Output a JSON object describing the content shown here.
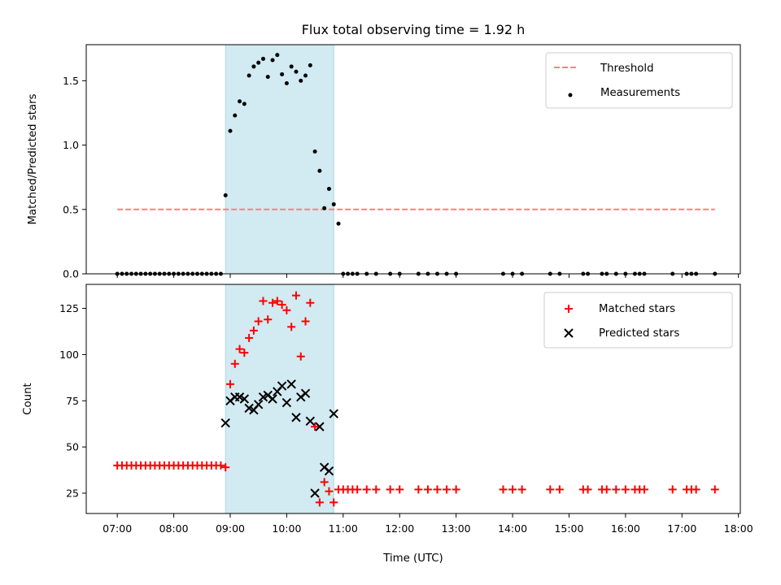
{
  "chart_data": [
    {
      "type": "scatter",
      "title": "Flux total observing time = 1.92 h",
      "xlabel": "",
      "ylabel": "Matched/Predicted stars",
      "ylim": [
        0,
        1.78
      ],
      "yticks": [
        "0.0",
        "0.5",
        "1.0",
        "1.5"
      ],
      "ytick_values": [
        0,
        0.5,
        1.0,
        1.5
      ],
      "legend_position": "top-right",
      "legend": [
        "Threshold",
        "Measurements"
      ],
      "threshold": {
        "name": "Threshold",
        "y": 0.5,
        "x_start": "07:00",
        "x_end": "17:35",
        "color": "#ff7f7f",
        "style": "dashed"
      },
      "observing_window": {
        "start": "08:55",
        "end": "10:50",
        "color": "#add8e6"
      },
      "series": [
        {
          "name": "Measurements",
          "color": "#000000",
          "points": [
            [
              "07:00",
              0
            ],
            [
              "07:05",
              0
            ],
            [
              "07:10",
              0
            ],
            [
              "07:15",
              0
            ],
            [
              "07:20",
              0
            ],
            [
              "07:25",
              0
            ],
            [
              "07:30",
              0
            ],
            [
              "07:35",
              0
            ],
            [
              "07:40",
              0
            ],
            [
              "07:45",
              0
            ],
            [
              "07:50",
              0
            ],
            [
              "07:55",
              0
            ],
            [
              "08:00",
              0
            ],
            [
              "08:05",
              0
            ],
            [
              "08:10",
              0
            ],
            [
              "08:15",
              0
            ],
            [
              "08:20",
              0
            ],
            [
              "08:25",
              0
            ],
            [
              "08:30",
              0
            ],
            [
              "08:35",
              0
            ],
            [
              "08:40",
              0
            ],
            [
              "08:45",
              0
            ],
            [
              "08:50",
              0
            ],
            [
              "08:55",
              0.61
            ],
            [
              "09:00",
              1.11
            ],
            [
              "09:05",
              1.23
            ],
            [
              "09:10",
              1.34
            ],
            [
              "09:15",
              1.32
            ],
            [
              "09:20",
              1.54
            ],
            [
              "09:25",
              1.61
            ],
            [
              "09:30",
              1.64
            ],
            [
              "09:35",
              1.67
            ],
            [
              "09:40",
              1.53
            ],
            [
              "09:45",
              1.66
            ],
            [
              "09:50",
              1.7
            ],
            [
              "09:55",
              1.55
            ],
            [
              "10:00",
              1.48
            ],
            [
              "10:05",
              1.61
            ],
            [
              "10:10",
              1.57
            ],
            [
              "10:15",
              1.5
            ],
            [
              "10:20",
              1.54
            ],
            [
              "10:25",
              1.62
            ],
            [
              "10:30",
              0.95
            ],
            [
              "10:35",
              0.8
            ],
            [
              "10:40",
              0.51
            ],
            [
              "10:45",
              0.66
            ],
            [
              "10:50",
              0.54
            ],
            [
              "10:55",
              0.39
            ],
            [
              "11:00",
              0
            ],
            [
              "11:05",
              0
            ],
            [
              "11:10",
              0
            ],
            [
              "11:15",
              0
            ],
            [
              "11:25",
              0
            ],
            [
              "11:35",
              0
            ],
            [
              "11:50",
              0
            ],
            [
              "12:00",
              0
            ],
            [
              "12:20",
              0
            ],
            [
              "12:30",
              0
            ],
            [
              "12:40",
              0
            ],
            [
              "12:50",
              0
            ],
            [
              "13:00",
              0
            ],
            [
              "13:50",
              0
            ],
            [
              "14:00",
              0
            ],
            [
              "14:10",
              0
            ],
            [
              "14:40",
              0
            ],
            [
              "14:50",
              0
            ],
            [
              "15:15",
              0
            ],
            [
              "15:20",
              0
            ],
            [
              "15:35",
              0
            ],
            [
              "15:40",
              0
            ],
            [
              "15:50",
              0
            ],
            [
              "16:00",
              0
            ],
            [
              "16:10",
              0
            ],
            [
              "16:15",
              0
            ],
            [
              "16:20",
              0
            ],
            [
              "16:50",
              0
            ],
            [
              "17:05",
              0
            ],
            [
              "17:10",
              0
            ],
            [
              "17:15",
              0
            ],
            [
              "17:35",
              0
            ]
          ]
        }
      ]
    },
    {
      "type": "scatter",
      "title": "",
      "xlabel": "Time (UTC)",
      "ylabel": "Count",
      "ylim": [
        14,
        138
      ],
      "yticks": [
        "25",
        "50",
        "75",
        "100",
        "125"
      ],
      "ytick_values": [
        25,
        50,
        75,
        100,
        125
      ],
      "xlim": [
        "06:27",
        "18:02"
      ],
      "xticks": [
        "07:00",
        "08:00",
        "09:00",
        "10:00",
        "11:00",
        "12:00",
        "13:00",
        "14:00",
        "15:00",
        "16:00",
        "17:00",
        "18:00"
      ],
      "legend_position": "top-right",
      "legend": [
        "Matched stars",
        "Predicted stars"
      ],
      "observing_window": {
        "start": "08:55",
        "end": "10:50",
        "color": "#add8e6"
      },
      "series": [
        {
          "name": "Matched stars",
          "marker": "+",
          "color": "#ff0000",
          "points": [
            [
              "07:00",
              40
            ],
            [
              "07:05",
              40
            ],
            [
              "07:10",
              40
            ],
            [
              "07:15",
              40
            ],
            [
              "07:20",
              40
            ],
            [
              "07:25",
              40
            ],
            [
              "07:30",
              40
            ],
            [
              "07:35",
              40
            ],
            [
              "07:40",
              40
            ],
            [
              "07:45",
              40
            ],
            [
              "07:50",
              40
            ],
            [
              "07:55",
              40
            ],
            [
              "08:00",
              40
            ],
            [
              "08:05",
              40
            ],
            [
              "08:10",
              40
            ],
            [
              "08:15",
              40
            ],
            [
              "08:20",
              40
            ],
            [
              "08:25",
              40
            ],
            [
              "08:30",
              40
            ],
            [
              "08:35",
              40
            ],
            [
              "08:40",
              40
            ],
            [
              "08:45",
              40
            ],
            [
              "08:50",
              40
            ],
            [
              "08:55",
              39
            ],
            [
              "09:00",
              84
            ],
            [
              "09:05",
              95
            ],
            [
              "09:10",
              103
            ],
            [
              "09:15",
              101
            ],
            [
              "09:20",
              109
            ],
            [
              "09:25",
              113
            ],
            [
              "09:30",
              118
            ],
            [
              "09:35",
              129
            ],
            [
              "09:40",
              119
            ],
            [
              "09:45",
              128
            ],
            [
              "09:50",
              129
            ],
            [
              "09:55",
              127
            ],
            [
              "10:00",
              124
            ],
            [
              "10:05",
              115
            ],
            [
              "10:10",
              132
            ],
            [
              "10:15",
              99
            ],
            [
              "10:20",
              118
            ],
            [
              "10:25",
              128
            ],
            [
              "10:30",
              61
            ],
            [
              "10:35",
              20
            ],
            [
              "10:40",
              31
            ],
            [
              "10:45",
              26
            ],
            [
              "10:50",
              20
            ],
            [
              "10:55",
              27
            ],
            [
              "11:00",
              27
            ],
            [
              "11:05",
              27
            ],
            [
              "11:10",
              27
            ],
            [
              "11:15",
              27
            ],
            [
              "11:25",
              27
            ],
            [
              "11:35",
              27
            ],
            [
              "11:50",
              27
            ],
            [
              "12:00",
              27
            ],
            [
              "12:20",
              27
            ],
            [
              "12:30",
              27
            ],
            [
              "12:40",
              27
            ],
            [
              "12:50",
              27
            ],
            [
              "13:00",
              27
            ],
            [
              "13:50",
              27
            ],
            [
              "14:00",
              27
            ],
            [
              "14:10",
              27
            ],
            [
              "14:40",
              27
            ],
            [
              "14:50",
              27
            ],
            [
              "15:15",
              27
            ],
            [
              "15:20",
              27
            ],
            [
              "15:35",
              27
            ],
            [
              "15:40",
              27
            ],
            [
              "15:50",
              27
            ],
            [
              "16:00",
              27
            ],
            [
              "16:10",
              27
            ],
            [
              "16:15",
              27
            ],
            [
              "16:20",
              27
            ],
            [
              "16:50",
              27
            ],
            [
              "17:05",
              27
            ],
            [
              "17:10",
              27
            ],
            [
              "17:15",
              27
            ],
            [
              "17:35",
              27
            ]
          ]
        },
        {
          "name": "Predicted stars",
          "marker": "x",
          "color": "#000000",
          "points": [
            [
              "08:55",
              63
            ],
            [
              "09:00",
              75
            ],
            [
              "09:05",
              77
            ],
            [
              "09:10",
              77
            ],
            [
              "09:15",
              76
            ],
            [
              "09:20",
              71
            ],
            [
              "09:25",
              70
            ],
            [
              "09:30",
              73
            ],
            [
              "09:35",
              77
            ],
            [
              "09:40",
              78
            ],
            [
              "09:45",
              76
            ],
            [
              "09:50",
              80
            ],
            [
              "09:55",
              83
            ],
            [
              "10:00",
              74
            ],
            [
              "10:05",
              84
            ],
            [
              "10:10",
              66
            ],
            [
              "10:15",
              77
            ],
            [
              "10:20",
              79
            ],
            [
              "10:25",
              64
            ],
            [
              "10:30",
              25
            ],
            [
              "10:35",
              61
            ],
            [
              "10:40",
              39
            ],
            [
              "10:45",
              37
            ],
            [
              "10:50",
              68
            ]
          ]
        }
      ]
    }
  ]
}
